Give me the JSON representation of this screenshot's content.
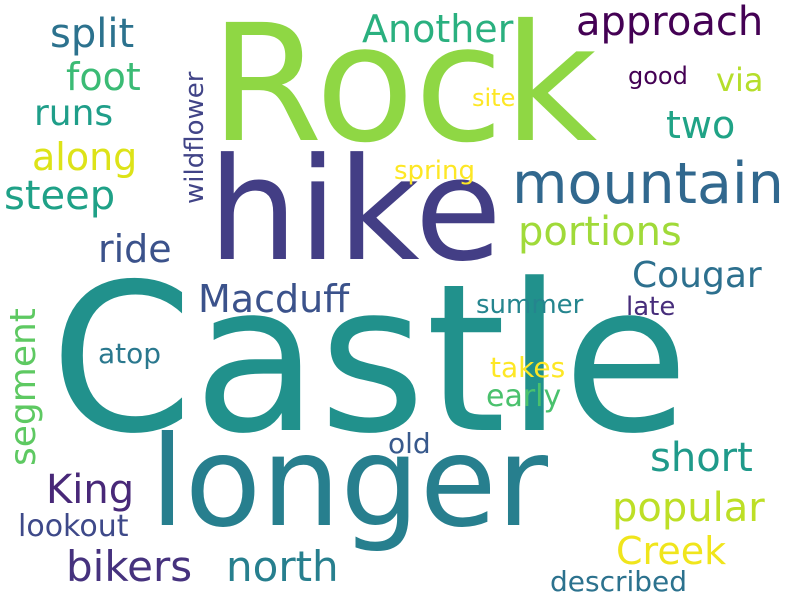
{
  "words": [
    {
      "text": "Castle",
      "color": "#21918c"
    },
    {
      "text": "Rock",
      "color": "#8fd744"
    },
    {
      "text": "hike",
      "color": "#433e85"
    },
    {
      "text": "longer",
      "color": "#277f8e"
    },
    {
      "text": "mountain",
      "color": "#31688e"
    },
    {
      "text": "approach",
      "color": "#440154"
    },
    {
      "text": "Another",
      "color": "#2ab07f"
    },
    {
      "text": "split",
      "color": "#2c728e"
    },
    {
      "text": "foot",
      "color": "#3bbb75"
    },
    {
      "text": "runs",
      "color": "#1f9e89"
    },
    {
      "text": "along",
      "color": "#dde318"
    },
    {
      "text": "steep",
      "color": "#1fa187"
    },
    {
      "text": "via",
      "color": "#b5de2b"
    },
    {
      "text": "two",
      "color": "#20a386"
    },
    {
      "text": "good",
      "color": "#440154"
    },
    {
      "text": "site",
      "color": "#fde725"
    },
    {
      "text": "spring",
      "color": "#fde725"
    },
    {
      "text": "wildflower",
      "color": "#414487"
    },
    {
      "text": "portions",
      "color": "#a0da39"
    },
    {
      "text": "ride",
      "color": "#3b528b"
    },
    {
      "text": "Cougar",
      "color": "#2d708e"
    },
    {
      "text": "Macduff",
      "color": "#3b528b"
    },
    {
      "text": "segment",
      "color": "#5ec962"
    },
    {
      "text": "summer",
      "color": "#25858e"
    },
    {
      "text": "late",
      "color": "#472d7b"
    },
    {
      "text": "atop",
      "color": "#2a788e"
    },
    {
      "text": "takes",
      "color": "#fde725"
    },
    {
      "text": "early",
      "color": "#4ac16d"
    },
    {
      "text": "old",
      "color": "#38598c"
    },
    {
      "text": "short",
      "color": "#1f9a8a"
    },
    {
      "text": "King",
      "color": "#482878"
    },
    {
      "text": "popular",
      "color": "#bddf26"
    },
    {
      "text": "bikers",
      "color": "#46327e"
    },
    {
      "text": "north",
      "color": "#277f8e"
    },
    {
      "text": "Creek",
      "color": "#f0e51c"
    },
    {
      "text": "lookout",
      "color": "#3e4989"
    },
    {
      "text": "described",
      "color": "#2c728e"
    }
  ]
}
